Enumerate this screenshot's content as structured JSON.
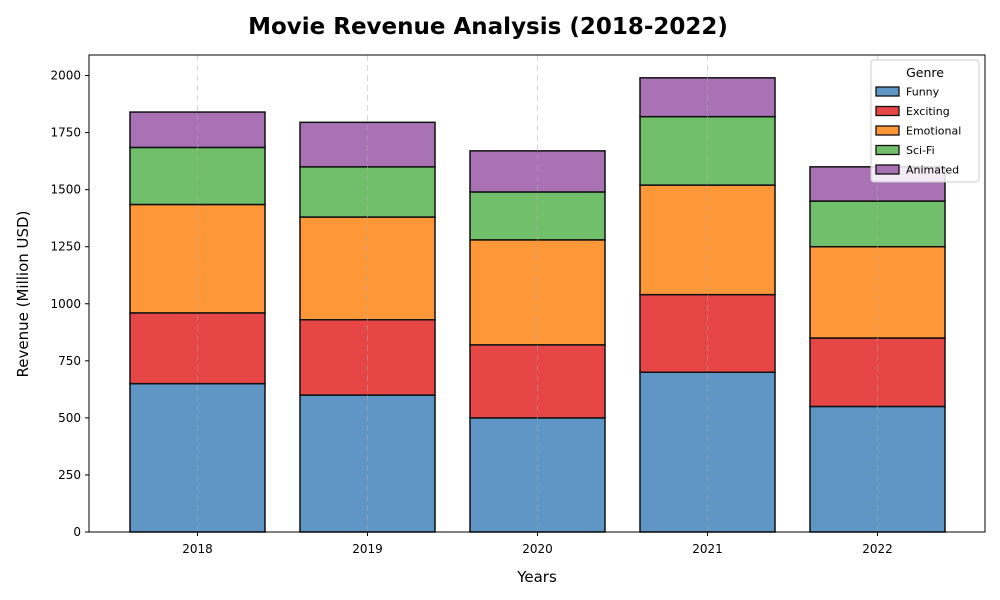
{
  "chart_data": {
    "type": "bar",
    "stacked": true,
    "title": "Movie Revenue Analysis (2018-2022)",
    "xlabel": "Years",
    "ylabel": "Revenue (Million USD)",
    "categories": [
      "2018",
      "2019",
      "2020",
      "2021",
      "2022"
    ],
    "ylim": [
      0,
      2090
    ],
    "yticks": [
      0,
      250,
      500,
      750,
      1000,
      1250,
      1500,
      1750,
      2000
    ],
    "grid": "x-dashed",
    "legend": {
      "title": "Genre",
      "placement": "top-right"
    },
    "series": [
      {
        "name": "Funny",
        "color": "#6096c6",
        "values": [
          650,
          600,
          500,
          700,
          550
        ]
      },
      {
        "name": "Exciting",
        "color": "#e64646",
        "values": [
          310,
          330,
          320,
          340,
          300
        ]
      },
      {
        "name": "Emotional",
        "color": "#fe9737",
        "values": [
          475,
          450,
          460,
          480,
          400
        ]
      },
      {
        "name": "Sci-Fi",
        "color": "#72bf6b",
        "values": [
          250,
          220,
          210,
          300,
          200
        ]
      },
      {
        "name": "Animated",
        "color": "#a972b4",
        "values": [
          155,
          195,
          180,
          170,
          150
        ]
      }
    ]
  }
}
